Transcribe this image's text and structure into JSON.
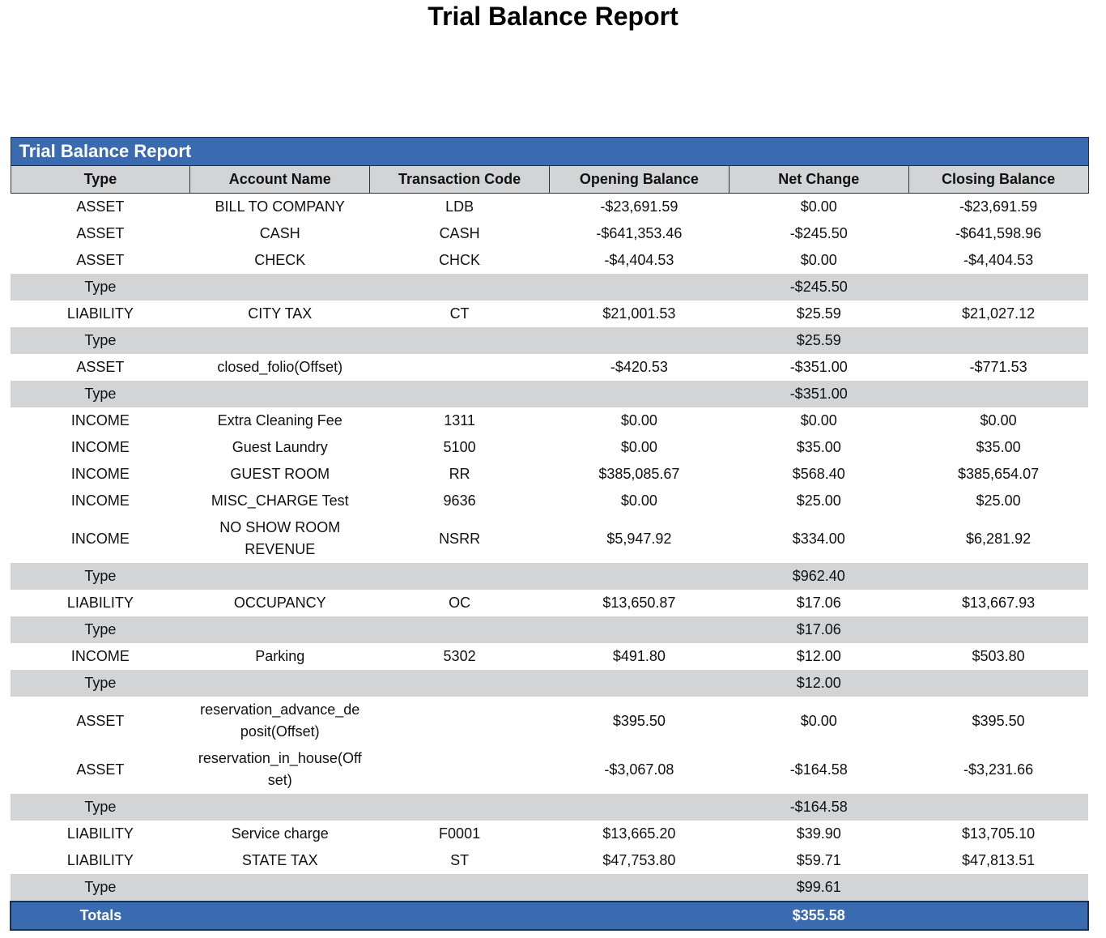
{
  "header": {
    "title": "Trial Balance Report"
  },
  "table": {
    "title": "Trial Balance Report",
    "columns": [
      "Type",
      "Account Name",
      "Transaction Code",
      "Opening Balance",
      "Net Change",
      "Closing Balance"
    ],
    "rows": [
      [
        "ASSET",
        "BILL TO COMPANY",
        "LDB",
        "-$23,691.59",
        "$0.00",
        "-$23,691.59"
      ],
      [
        "ASSET",
        "CASH",
        "CASH",
        "-$641,353.46",
        "-$245.50",
        "-$641,598.96"
      ],
      [
        "ASSET",
        "CHECK",
        "CHCK",
        "-$4,404.53",
        "$0.00",
        "-$4,404.53"
      ],
      [
        "Type",
        null,
        null,
        null,
        "-$245.50",
        null
      ],
      [
        "LIABILITY",
        "CITY TAX",
        "CT",
        "$21,001.53",
        "$25.59",
        "$21,027.12"
      ],
      [
        "Type",
        null,
        null,
        null,
        "$25.59",
        null
      ],
      [
        "ASSET",
        "closed_folio(Offset)",
        null,
        "-$420.53",
        "-$351.00",
        "-$771.53"
      ],
      [
        "Type",
        null,
        null,
        null,
        "-$351.00",
        null
      ],
      [
        "INCOME",
        "Extra Cleaning Fee",
        "1311",
        "$0.00",
        "$0.00",
        "$0.00"
      ],
      [
        "INCOME",
        "Guest Laundry",
        "5100",
        "$0.00",
        "$35.00",
        "$35.00"
      ],
      [
        "INCOME",
        "GUEST ROOM",
        "RR",
        "$385,085.67",
        "$568.40",
        "$385,654.07"
      ],
      [
        "INCOME",
        "MISC_CHARGE Test",
        "9636",
        "$0.00",
        "$25.00",
        "$25.00"
      ],
      [
        "INCOME",
        "NO SHOW ROOM REVENUE",
        "NSRR",
        "$5,947.92",
        "$334.00",
        "$6,281.92"
      ],
      [
        "Type",
        null,
        null,
        null,
        "$962.40",
        null
      ],
      [
        "LIABILITY",
        "OCCUPANCY",
        "OC",
        "$13,650.87",
        "$17.06",
        "$13,667.93"
      ],
      [
        "Type",
        null,
        null,
        null,
        "$17.06",
        null
      ],
      [
        "INCOME",
        "Parking",
        "5302",
        "$491.80",
        "$12.00",
        "$503.80"
      ],
      [
        "Type",
        null,
        null,
        null,
        "$12.00",
        null
      ],
      [
        "ASSET",
        "reservation_advance_deposit(Offset)",
        null,
        "$395.50",
        "$0.00",
        "$395.50"
      ],
      [
        "ASSET",
        "reservation_in_house(Offset)",
        null,
        "-$3,067.08",
        "-$164.58",
        "-$3,231.66"
      ],
      [
        "Type",
        null,
        null,
        null,
        "-$164.58",
        null
      ],
      [
        "LIABILITY",
        "Service charge",
        "F0001",
        "$13,665.20",
        "$39.90",
        "$13,705.10"
      ],
      [
        "LIABILITY",
        "STATE TAX",
        "ST",
        "$47,753.80",
        "$59.71",
        "$47,813.51"
      ],
      [
        "Type",
        null,
        null,
        null,
        "$99.61",
        null
      ]
    ],
    "totals": [
      "Totals",
      null,
      null,
      null,
      "$355.58",
      null
    ]
  }
}
